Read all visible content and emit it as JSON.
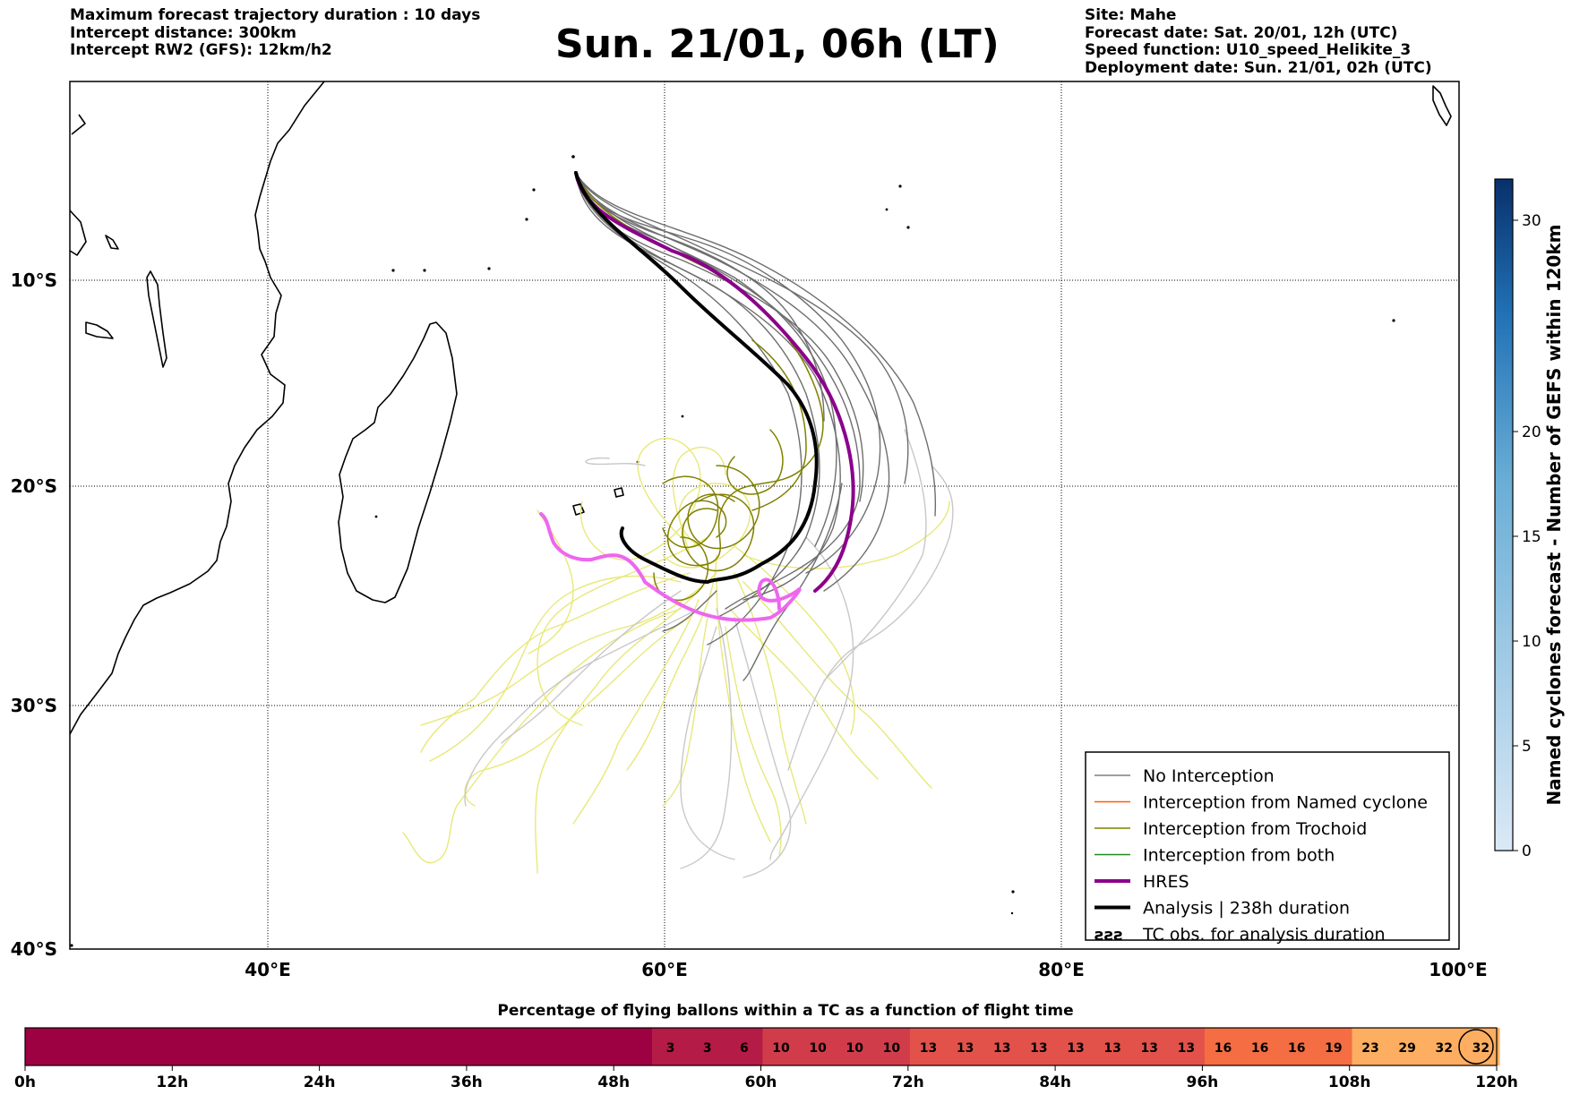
{
  "header": {
    "left": [
      "Maximum forecast trajectory duration : 10 days",
      "Intercept distance: 300km",
      "Intercept RW2 (GFS):  12km/h2"
    ],
    "title": "Sun. 21/01, 06h (LT)",
    "right": [
      "Site: Mahe",
      "Forecast date: Sat. 20/01, 12h (UTC)",
      "Speed function: U10_speed_Helikite_3",
      "Deployment date: Sun. 21/01, 02h (UTC)"
    ]
  },
  "map": {
    "lat_labels": [
      "10°S",
      "20°S",
      "30°S",
      "40°S"
    ],
    "lon_labels": [
      "40°E",
      "60°E",
      "80°E",
      "100°E"
    ],
    "legend": [
      {
        "label": "No Interception",
        "color": "#7f7f7f",
        "width": 1.5
      },
      {
        "label": "Interception from Named cyclone",
        "color": "#ff5a00",
        "width": 1.5
      },
      {
        "label": "Interception from Trochoid",
        "color": "#808000",
        "width": 1.5
      },
      {
        "label": "Interception from both",
        "color": "#228b22",
        "width": 1.5
      },
      {
        "label": "HRES",
        "color": "#8b008b",
        "width": 4
      },
      {
        "label": "Analysis | 238h duration",
        "color": "#000000",
        "width": 4
      },
      {
        "label": "TC obs. for analysis duration",
        "symbol": "ƨƨƨ"
      }
    ]
  },
  "colorbar_right": {
    "label": "Named cyclones forecast - Number of GEFS within 120km",
    "ticks": [
      "0",
      "5",
      "10",
      "15",
      "20",
      "30"
    ],
    "colors": [
      "#dbe9f6",
      "#2171b5",
      "#08306b"
    ]
  },
  "bottom_bar": {
    "title": "Percentage of flying ballons within a TC as a function of flight time",
    "time_labels": [
      "0h",
      "12h",
      "24h",
      "36h",
      "48h",
      "60h",
      "72h",
      "84h",
      "96h",
      "108h",
      "120h"
    ],
    "values": [
      "3",
      "3",
      "6",
      "10",
      "10",
      "10",
      "10",
      "13",
      "13",
      "13",
      "13",
      "13",
      "13",
      "13",
      "13",
      "16",
      "16",
      "16",
      "19",
      "23",
      "29",
      "32",
      "32"
    ],
    "colors": {
      "base": "#9e0142",
      "low": "#b41b46",
      "mid": "#d13c4b",
      "high": "#e2524a",
      "orange": "#f46d43",
      "light": "#fdae61"
    }
  }
}
